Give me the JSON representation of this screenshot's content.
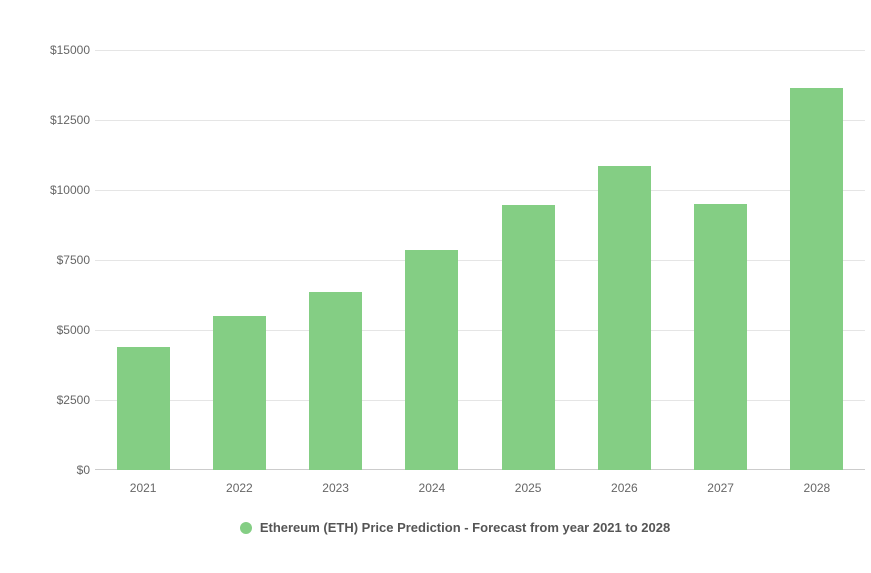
{
  "chart": {
    "type": "bar",
    "categories": [
      "2021",
      "2022",
      "2023",
      "2024",
      "2025",
      "2026",
      "2027",
      "2028"
    ],
    "values": [
      4380,
      5500,
      6350,
      7850,
      9450,
      10850,
      9500,
      13650
    ],
    "bar_color": "#84ce84",
    "legend_dot_color": "#84ce84",
    "legend_label": "Ethereum (ETH) Price Prediction - Forecast from year 2021 to 2028",
    "ylim": [
      0,
      15000
    ],
    "ytick_step": 2500,
    "ytick_labels": [
      "$0",
      "$2500",
      "$5000",
      "$7500",
      "$10000",
      "$12500",
      "$15000"
    ],
    "y_label_color": "#666666",
    "x_label_color": "#666666",
    "grid_color": "#e5e5e5",
    "baseline_color": "#cccccc",
    "background_color": "#ffffff",
    "bar_width_ratio": 0.55,
    "label_fontsize": 12,
    "legend_fontsize": 13,
    "legend_text_color": "#555555",
    "currency_prefix": "$"
  }
}
